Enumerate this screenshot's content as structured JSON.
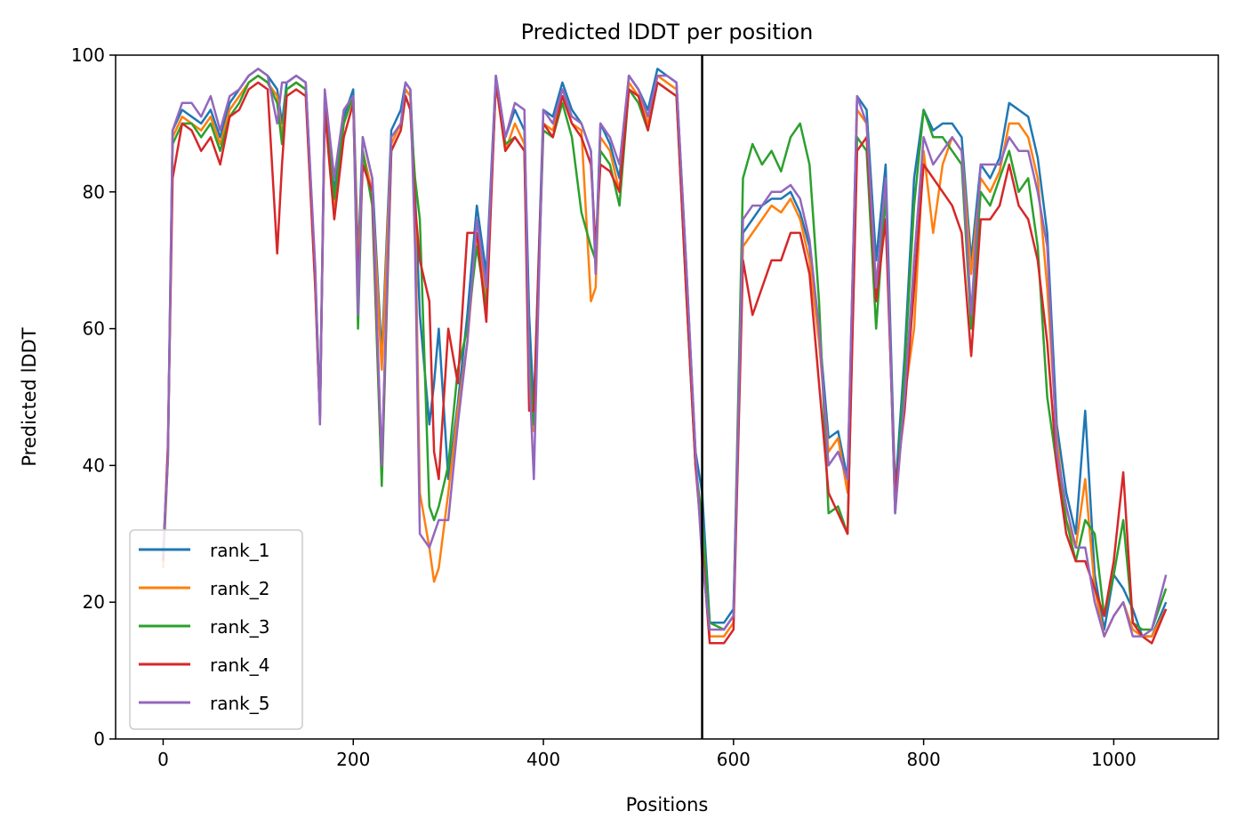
{
  "chart_data": {
    "type": "line",
    "title": "Predicted lDDT per position",
    "xlabel": "Positions",
    "ylabel": "Predicted lDDT",
    "xlim": [
      -50,
      1110
    ],
    "ylim": [
      0,
      100
    ],
    "xticks": [
      0,
      200,
      400,
      600,
      800,
      1000
    ],
    "yticks": [
      0,
      20,
      40,
      60,
      80,
      100
    ],
    "xtick_labels": [
      "0",
      "200",
      "400",
      "600",
      "800",
      "1000"
    ],
    "ytick_labels": [
      "0",
      "20",
      "40",
      "60",
      "80",
      "100"
    ],
    "grid": false,
    "legend_position": "lower-left",
    "vertical_line_x": 567,
    "vertical_line_color": "#000000",
    "x": [
      0,
      5,
      10,
      20,
      30,
      40,
      50,
      60,
      70,
      80,
      90,
      100,
      110,
      120,
      125,
      130,
      140,
      150,
      160,
      165,
      170,
      180,
      190,
      200,
      205,
      210,
      220,
      230,
      240,
      250,
      255,
      260,
      265,
      270,
      280,
      285,
      290,
      300,
      310,
      320,
      330,
      340,
      350,
      360,
      370,
      380,
      385,
      390,
      400,
      410,
      420,
      430,
      440,
      450,
      455,
      460,
      470,
      480,
      490,
      500,
      510,
      520,
      530,
      540,
      550,
      560,
      567,
      575,
      590,
      600,
      610,
      620,
      630,
      640,
      650,
      660,
      670,
      680,
      690,
      700,
      710,
      720,
      730,
      740,
      750,
      760,
      770,
      780,
      790,
      800,
      810,
      820,
      830,
      840,
      850,
      860,
      870,
      880,
      890,
      900,
      910,
      920,
      930,
      940,
      950,
      960,
      970,
      980,
      990,
      1000,
      1010,
      1020,
      1030,
      1040,
      1055
    ],
    "series": [
      {
        "name": "rank_1",
        "color": "#1f77b4",
        "values": [
          27,
          42,
          89,
          92,
          91,
          90,
          92,
          88,
          93,
          95,
          97,
          98,
          97,
          95,
          90,
          96,
          97,
          96,
          68,
          48,
          94,
          80,
          91,
          95,
          70,
          88,
          82,
          56,
          89,
          92,
          96,
          95,
          80,
          62,
          46,
          52,
          60,
          38,
          49,
          62,
          78,
          68,
          97,
          88,
          92,
          89,
          62,
          48,
          92,
          91,
          96,
          92,
          90,
          86,
          70,
          90,
          87,
          82,
          97,
          95,
          92,
          98,
          97,
          96,
          70,
          42,
          36,
          17,
          17,
          19,
          74,
          76,
          78,
          79,
          79,
          80,
          77,
          72,
          60,
          44,
          45,
          38,
          94,
          92,
          70,
          84,
          36,
          56,
          82,
          92,
          89,
          90,
          90,
          88,
          70,
          84,
          82,
          85,
          93,
          92,
          91,
          85,
          74,
          46,
          36,
          30,
          48,
          24,
          16,
          24,
          22,
          19,
          15,
          15,
          20
        ]
      },
      {
        "name": "rank_2",
        "color": "#ff7f0e",
        "values": [
          25,
          41,
          88,
          91,
          90,
          89,
          91,
          87,
          92,
          94,
          96,
          97,
          96,
          94,
          88,
          95,
          96,
          95,
          66,
          47,
          93,
          78,
          90,
          94,
          68,
          86,
          80,
          54,
          87,
          90,
          95,
          94,
          78,
          36,
          28,
          23,
          25,
          36,
          48,
          58,
          74,
          64,
          96,
          86,
          90,
          87,
          56,
          45,
          90,
          89,
          94,
          90,
          89,
          64,
          66,
          88,
          86,
          80,
          96,
          94,
          90,
          97,
          96,
          95,
          68,
          40,
          30,
          15,
          15,
          17,
          72,
          74,
          76,
          78,
          77,
          79,
          76,
          70,
          58,
          42,
          44,
          36,
          92,
          90,
          66,
          80,
          34,
          50,
          60,
          86,
          74,
          84,
          88,
          86,
          68,
          82,
          80,
          83,
          90,
          90,
          88,
          82,
          66,
          44,
          32,
          28,
          38,
          22,
          15,
          18,
          20,
          16,
          15,
          15,
          19
        ]
      },
      {
        "name": "rank_3",
        "color": "#2ca02c",
        "values": [
          26,
          41,
          87,
          90,
          90,
          88,
          90,
          86,
          91,
          93,
          96,
          97,
          96,
          93,
          87,
          95,
          96,
          95,
          67,
          47,
          93,
          79,
          90,
          94,
          60,
          86,
          78,
          37,
          86,
          89,
          94,
          92,
          82,
          76,
          34,
          32,
          34,
          40,
          54,
          60,
          72,
          63,
          96,
          87,
          88,
          86,
          56,
          46,
          89,
          88,
          93,
          88,
          77,
          72,
          70,
          86,
          84,
          78,
          95,
          93,
          89,
          96,
          95,
          94,
          66,
          40,
          32,
          17,
          16,
          18,
          82,
          87,
          84,
          86,
          83,
          88,
          90,
          84,
          64,
          33,
          34,
          30,
          88,
          86,
          60,
          80,
          33,
          54,
          78,
          92,
          88,
          88,
          86,
          84,
          60,
          80,
          78,
          82,
          86,
          80,
          82,
          72,
          50,
          40,
          32,
          26,
          32,
          30,
          18,
          24,
          32,
          17,
          16,
          16,
          22
        ]
      },
      {
        "name": "rank_4",
        "color": "#d62728",
        "values": [
          26,
          43,
          82,
          90,
          89,
          86,
          88,
          84,
          91,
          92,
          95,
          96,
          95,
          71,
          84,
          94,
          95,
          94,
          66,
          47,
          92,
          76,
          88,
          93,
          66,
          84,
          80,
          40,
          86,
          89,
          94,
          92,
          78,
          70,
          64,
          42,
          38,
          60,
          52,
          74,
          74,
          61,
          96,
          86,
          88,
          86,
          48,
          48,
          90,
          88,
          94,
          90,
          88,
          84,
          72,
          84,
          83,
          80,
          95,
          94,
          89,
          96,
          95,
          94,
          66,
          40,
          28,
          14,
          14,
          16,
          70,
          62,
          66,
          70,
          70,
          74,
          74,
          68,
          52,
          36,
          33,
          30,
          86,
          88,
          64,
          76,
          36,
          48,
          66,
          84,
          82,
          80,
          78,
          74,
          56,
          76,
          76,
          78,
          84,
          78,
          76,
          70,
          58,
          40,
          30,
          26,
          26,
          22,
          18,
          26,
          39,
          17,
          15,
          14,
          19
        ]
      },
      {
        "name": "rank_5",
        "color": "#9467bd",
        "values": [
          27,
          41,
          89,
          93,
          93,
          91,
          94,
          89,
          94,
          95,
          97,
          98,
          97,
          90,
          96,
          96,
          97,
          96,
          69,
          46,
          95,
          82,
          92,
          94,
          62,
          88,
          82,
          40,
          88,
          90,
          96,
          95,
          72,
          30,
          28,
          30,
          32,
          32,
          46,
          58,
          76,
          66,
          97,
          88,
          93,
          92,
          54,
          38,
          92,
          90,
          95,
          91,
          90,
          86,
          68,
          90,
          88,
          84,
          97,
          95,
          91,
          97,
          97,
          96,
          70,
          42,
          26,
          16,
          16,
          18,
          76,
          78,
          78,
          80,
          80,
          81,
          79,
          73,
          60,
          40,
          42,
          38,
          94,
          90,
          66,
          82,
          33,
          50,
          70,
          88,
          84,
          86,
          88,
          86,
          62,
          84,
          84,
          84,
          88,
          86,
          86,
          80,
          72,
          42,
          34,
          28,
          28,
          20,
          15,
          18,
          20,
          15,
          15,
          16,
          24
        ]
      }
    ]
  }
}
